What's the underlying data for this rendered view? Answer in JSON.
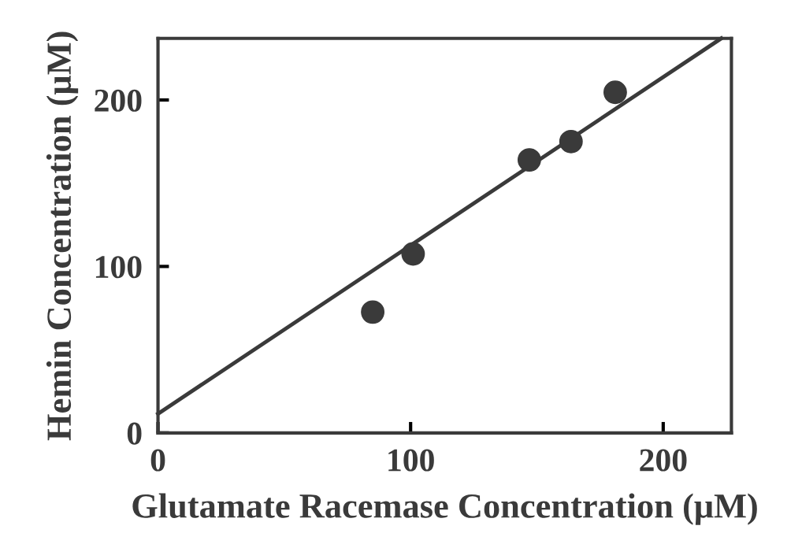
{
  "chart_data": {
    "type": "scatter",
    "xlabel": "Glutamate Racemase Concentration (μM)",
    "ylabel": "Hemin Concentration (μM)",
    "x": [
      85,
      101,
      147,
      163.5,
      181
    ],
    "series": [
      {
        "color": "#3a3a3a",
        "values": [
          72.6,
          107.5,
          164,
          175,
          204.6
        ],
        "marker": "circle"
      },
      {
        "type": "line",
        "color": "#3a3a3a",
        "x": [
          0,
          223
        ],
        "values": [
          11.5,
          237
        ],
        "marker": "none",
        "line_style": "solid"
      }
    ],
    "xlim": [
      0,
      227
    ],
    "ylim": [
      0,
      237
    ],
    "xticks": [
      0,
      100,
      200
    ],
    "yticks": [
      0,
      100,
      200
    ],
    "grid": false,
    "legend": false
  }
}
